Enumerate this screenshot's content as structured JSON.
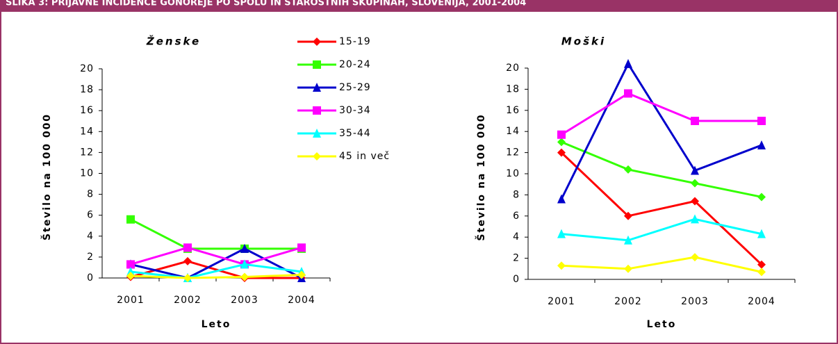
{
  "figure_title": "SLIKA 3: PRIJAVNE INCIDENCE GONOREJE PO SPOLU IN STAROSTNIH SKUPINAH, SLOVENIJA, 2001-2004",
  "chart_data": [
    {
      "type": "line",
      "title": "Ženske",
      "x_label": "Leto",
      "y_label": "Število na 100 000",
      "categories": [
        "2001",
        "2002",
        "2003",
        "2004"
      ],
      "ylim": [
        0,
        20
      ],
      "yticks": [
        0,
        2,
        4,
        6,
        8,
        10,
        12,
        14,
        16,
        18,
        20
      ],
      "series": [
        {
          "name": "15-19",
          "color": "#ff0000",
          "marker": "diamond",
          "values": [
            0.1,
            1.6,
            0,
            0
          ]
        },
        {
          "name": "20-24",
          "color": "#33ff00",
          "marker": "square",
          "values": [
            5.6,
            2.8,
            2.8,
            2.8
          ]
        },
        {
          "name": "25-29",
          "color": "#0000cc",
          "marker": "triangle",
          "values": [
            1.3,
            0,
            2.8,
            0
          ]
        },
        {
          "name": "30-34",
          "color": "#ff00ff",
          "marker": "square",
          "values": [
            1.3,
            2.9,
            1.3,
            2.9
          ]
        },
        {
          "name": "35-44",
          "color": "#00ffff",
          "marker": "triangle",
          "values": [
            0.6,
            0,
            1.3,
            0.6
          ]
        },
        {
          "name": "45 in več",
          "color": "#ffff00",
          "marker": "diamond",
          "values": [
            0.2,
            0,
            0.1,
            0.3
          ]
        }
      ]
    },
    {
      "type": "line",
      "title": "Moški",
      "x_label": "Leto",
      "y_label": "Število na 100 000",
      "categories": [
        "2001",
        "2002",
        "2003",
        "2004"
      ],
      "ylim": [
        0,
        20
      ],
      "yticks": [
        0,
        2,
        4,
        6,
        8,
        10,
        12,
        14,
        16,
        18,
        20
      ],
      "series": [
        {
          "color": "#ff0000",
          "marker": "diamond",
          "values": [
            12,
            6,
            7.4,
            1.4
          ]
        },
        {
          "color": "#33ff00",
          "marker": "diamond",
          "values": [
            13,
            10.4,
            9.1,
            7.8
          ]
        },
        {
          "color": "#0000cc",
          "marker": "triangle",
          "values": [
            7.6,
            20.4,
            10.3,
            12.7
          ]
        },
        {
          "color": "#ff00ff",
          "marker": "square",
          "values": [
            13.7,
            17.6,
            15,
            15
          ]
        },
        {
          "color": "#00ffff",
          "marker": "triangle",
          "values": [
            4.3,
            3.7,
            5.7,
            4.3
          ]
        },
        {
          "color": "#ffff00",
          "marker": "diamond",
          "values": [
            1.3,
            1.0,
            2.1,
            0.7
          ]
        }
      ]
    }
  ]
}
